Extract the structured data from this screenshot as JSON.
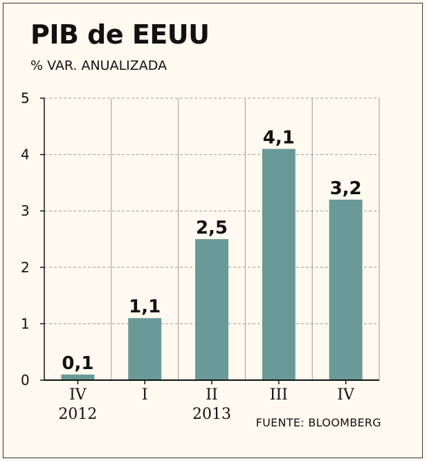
{
  "chart_data": {
    "type": "bar",
    "title": "PIB de EEUU",
    "subtitle": "% VAR. ANUALIZADA",
    "source": "FUENTE: BLOOMBERG",
    "categories": [
      "IV",
      "I",
      "II",
      "III",
      "IV"
    ],
    "year_labels": [
      "2012",
      "",
      "2013",
      "",
      ""
    ],
    "values": [
      0.1,
      1.1,
      2.5,
      4.1,
      3.2
    ],
    "value_labels": [
      "0,1",
      "1,1",
      "2,5",
      "4,1",
      "3,2"
    ],
    "yticks": [
      "0",
      "1",
      "2",
      "3",
      "4",
      "5"
    ],
    "ylim": [
      0,
      5
    ],
    "xlabel": "",
    "ylabel": "",
    "grid": true,
    "bar_color": "#6a9a98",
    "axis_color": "#111111",
    "grid_color": "#9a9a9a"
  }
}
